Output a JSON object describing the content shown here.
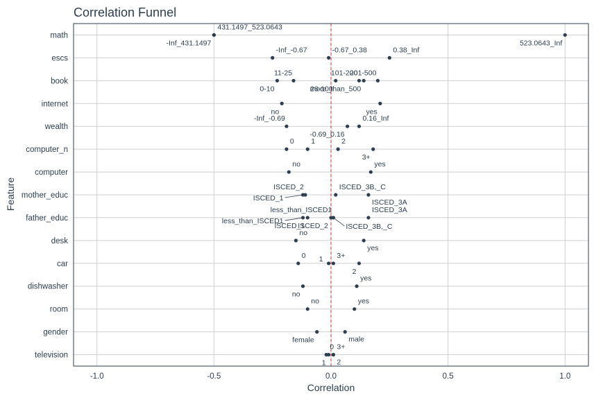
{
  "chart_data": {
    "type": "scatter",
    "title": "Correlation Funnel",
    "xlabel": "Correlation",
    "ylabel": "Feature",
    "xlim": [
      -1.1,
      1.1
    ],
    "xticks": [
      -1.0,
      -0.5,
      0.0,
      0.5,
      1.0
    ],
    "xtick_labels": [
      "-1.0",
      "-0.5",
      "0.0",
      "0.5",
      "1.0"
    ],
    "grid": true,
    "reference_line_x": 0,
    "colors": {
      "point": "#2c3e50",
      "reference_line": "#c0392b",
      "grid": "#cfcfcf",
      "text": "#2c3e50"
    },
    "features": [
      "math",
      "escs",
      "book",
      "internet",
      "wealth",
      "computer_n",
      "computer",
      "mother_educ",
      "father_educ",
      "desk",
      "car",
      "dishwasher",
      "room",
      "gender",
      "television"
    ],
    "points": [
      {
        "feature": "math",
        "label": "431.1497_523.0643",
        "x": -0.5,
        "pos": "above-right"
      },
      {
        "feature": "math",
        "label": "-Inf_431.1497",
        "x": -0.5,
        "pos": "below-left"
      },
      {
        "feature": "math",
        "label": "523.0643_Inf",
        "x": 1.0,
        "pos": "below-left"
      },
      {
        "feature": "escs",
        "label": "-Inf_-0.67",
        "x": -0.25,
        "pos": "above-right"
      },
      {
        "feature": "escs",
        "label": "-0.67_0.38",
        "x": -0.01,
        "pos": "above-right"
      },
      {
        "feature": "escs",
        "label": "0.38_Inf",
        "x": 0.25,
        "pos": "above-right"
      },
      {
        "feature": "book",
        "label": "11-25",
        "x": -0.16,
        "pos": "above-left"
      },
      {
        "feature": "book",
        "label": "0-10",
        "x": -0.23,
        "pos": "below-left"
      },
      {
        "feature": "book",
        "label": "101-200",
        "x": 0.12,
        "pos": "above-left"
      },
      {
        "feature": "book",
        "label": "26-100",
        "x": 0.02,
        "pos": "below-left"
      },
      {
        "feature": "book",
        "label": "201-500",
        "x": 0.2,
        "pos": "above-left"
      },
      {
        "feature": "book",
        "label": "more_than_500",
        "x": 0.14,
        "pos": "below-left"
      },
      {
        "feature": "internet",
        "label": "no",
        "x": -0.21,
        "pos": "below-left"
      },
      {
        "feature": "internet",
        "label": "yes",
        "x": 0.21,
        "pos": "below-left"
      },
      {
        "feature": "wealth",
        "label": "-Inf_-0.69",
        "x": -0.19,
        "pos": "above-left"
      },
      {
        "feature": "wealth",
        "label": "-0.69_0.16",
        "x": 0.07,
        "pos": "below-left"
      },
      {
        "feature": "wealth",
        "label": "0.16_Inf",
        "x": 0.12,
        "pos": "above-right"
      },
      {
        "feature": "computer_n",
        "label": "0",
        "x": -0.19,
        "pos": "above-right"
      },
      {
        "feature": "computer_n",
        "label": "1",
        "x": -0.1,
        "pos": "above-right"
      },
      {
        "feature": "computer_n",
        "label": "2",
        "x": 0.03,
        "pos": "above-right"
      },
      {
        "feature": "computer_n",
        "label": "3+",
        "x": 0.18,
        "pos": "below-left"
      },
      {
        "feature": "computer",
        "label": "no",
        "x": -0.18,
        "pos": "above-right"
      },
      {
        "feature": "computer",
        "label": "yes",
        "x": 0.17,
        "pos": "above-right"
      },
      {
        "feature": "mother_educ",
        "label": "ISCED_2",
        "x": -0.11,
        "pos": "above-left"
      },
      {
        "feature": "mother_educ",
        "label": "ISCED_1",
        "x": -0.12,
        "pos": "leader-left"
      },
      {
        "feature": "mother_educ",
        "label": "ISCED_3B,_C",
        "x": 0.02,
        "pos": "above-right"
      },
      {
        "feature": "mother_educ",
        "label": "ISCED_3A",
        "x": 0.16,
        "pos": "below-right"
      },
      {
        "feature": "father_educ",
        "label": "less_than_ISCED1",
        "x": -0.12,
        "pos": "leader-left"
      },
      {
        "feature": "father_educ",
        "label": "ISCED_1",
        "x": -0.1,
        "pos": "below-left"
      },
      {
        "feature": "father_educ",
        "label": "less_than_ISCED1",
        "x": 0.01,
        "pos": "above-left"
      },
      {
        "feature": "father_educ",
        "label": "ISCED_2",
        "x": 0.0,
        "pos": "below-left"
      },
      {
        "feature": "father_educ",
        "label": "ISCED_3B,_C",
        "x": 0.01,
        "pos": "leader-right"
      },
      {
        "feature": "father_educ",
        "label": "ISCED_3A",
        "x": 0.16,
        "pos": "above-right"
      },
      {
        "feature": "desk",
        "label": "no",
        "x": -0.15,
        "pos": "above-right"
      },
      {
        "feature": "desk",
        "label": "yes",
        "x": 0.14,
        "pos": "below-right"
      },
      {
        "feature": "car",
        "label": "0",
        "x": -0.14,
        "pos": "above-right"
      },
      {
        "feature": "car",
        "label": "1",
        "x": -0.01,
        "pos": "left"
      },
      {
        "feature": "car",
        "label": "3+",
        "x": 0.01,
        "pos": "above-right"
      },
      {
        "feature": "car",
        "label": "2",
        "x": 0.12,
        "pos": "below-left"
      },
      {
        "feature": "dishwasher",
        "label": "no",
        "x": -0.12,
        "pos": "below-left"
      },
      {
        "feature": "dishwasher",
        "label": "yes",
        "x": 0.11,
        "pos": "above-right"
      },
      {
        "feature": "room",
        "label": "no",
        "x": -0.1,
        "pos": "above-right"
      },
      {
        "feature": "room",
        "label": "yes",
        "x": 0.1,
        "pos": "above-right"
      },
      {
        "feature": "gender",
        "label": "female",
        "x": -0.06,
        "pos": "below-left"
      },
      {
        "feature": "gender",
        "label": "male",
        "x": 0.06,
        "pos": "below-right"
      },
      {
        "feature": "television",
        "label": "0",
        "x": -0.02,
        "pos": "above-right"
      },
      {
        "feature": "television",
        "label": "1",
        "x": -0.01,
        "pos": "below-left"
      },
      {
        "feature": "television",
        "label": "3+",
        "x": 0.01,
        "pos": "above-right"
      },
      {
        "feature": "television",
        "label": "2",
        "x": 0.01,
        "pos": "below-right"
      }
    ]
  }
}
